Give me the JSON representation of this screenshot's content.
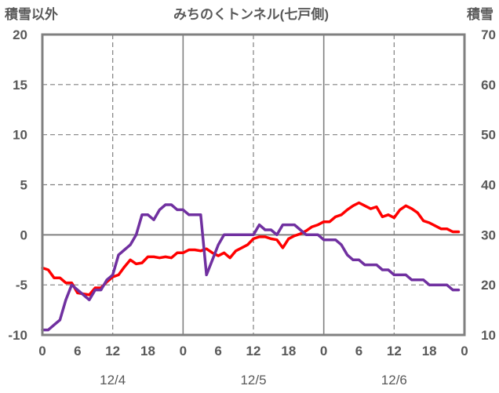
{
  "chart_data": {
    "type": "line",
    "title": "みちのくトンネル(七戸側)",
    "left_axis_label": "積雪以外",
    "right_axis_label": "積雪",
    "left_ylim": [
      -10,
      20
    ],
    "right_ylim": [
      10,
      70
    ],
    "left_yticks": [
      "-10",
      "-5",
      "0",
      "5",
      "10",
      "15",
      "20"
    ],
    "right_yticks": [
      "10",
      "20",
      "30",
      "40",
      "50",
      "60",
      "70"
    ],
    "xlim": [
      0,
      72
    ],
    "x_tick_labels": [
      "0",
      "6",
      "12",
      "18",
      "0",
      "6",
      "12",
      "18",
      "0",
      "6",
      "12",
      "18",
      "0"
    ],
    "x_date_labels": [
      {
        "x": 12,
        "label": "12/4"
      },
      {
        "x": 36,
        "label": "12/5"
      },
      {
        "x": 60,
        "label": "12/6"
      }
    ],
    "grid": "dashed verticals every 12h, solid verticals at 0h, solid zero line",
    "series": [
      {
        "key": "temperature",
        "color": "#ff0000",
        "axis": "left",
        "x": [
          0,
          1,
          2,
          3,
          4,
          5,
          6,
          7,
          8,
          9,
          10,
          11,
          12,
          13,
          14,
          15,
          16,
          17,
          18,
          19,
          20,
          21,
          22,
          23,
          24,
          25,
          26,
          27,
          28,
          29,
          30,
          31,
          32,
          33,
          34,
          35,
          36,
          37,
          38,
          39,
          40,
          41,
          42,
          43,
          44,
          45,
          46,
          47,
          48,
          49,
          50,
          51,
          52,
          53,
          54,
          55,
          56,
          57,
          58,
          59,
          60,
          61,
          62,
          63,
          64,
          65,
          66,
          67,
          68,
          69,
          70,
          71
        ],
        "values": [
          -3.3,
          -3.5,
          -4.3,
          -4.3,
          -4.8,
          -4.8,
          -5.8,
          -5.9,
          -6.0,
          -5.3,
          -5.3,
          -4.7,
          -4.2,
          -4.0,
          -3.2,
          -2.5,
          -2.9,
          -2.8,
          -2.2,
          -2.2,
          -2.3,
          -2.2,
          -2.3,
          -1.8,
          -1.8,
          -1.5,
          -1.5,
          -1.6,
          -1.4,
          -1.8,
          -2.1,
          -1.8,
          -2.3,
          -1.6,
          -1.3,
          -1.0,
          -0.4,
          -0.2,
          -0.2,
          -0.4,
          -0.5,
          -1.3,
          -0.4,
          -0.1,
          0.1,
          0.4,
          0.8,
          1.0,
          1.3,
          1.3,
          1.8,
          2.0,
          2.5,
          2.9,
          3.2,
          2.9,
          2.6,
          2.8,
          1.8,
          2.0,
          1.7,
          2.5,
          2.9,
          2.6,
          2.2,
          1.4,
          1.2,
          0.9,
          0.6,
          0.6,
          0.3,
          0.3
        ]
      },
      {
        "key": "snow_depth",
        "color": "#7030a0",
        "axis": "right",
        "x": [
          0,
          1,
          2,
          3,
          4,
          5,
          6,
          7,
          8,
          9,
          10,
          11,
          12,
          13,
          14,
          15,
          16,
          17,
          18,
          19,
          20,
          21,
          22,
          23,
          24,
          25,
          26,
          27,
          28,
          29,
          30,
          31,
          32,
          33,
          34,
          35,
          36,
          37,
          38,
          39,
          40,
          41,
          42,
          43,
          44,
          45,
          46,
          47,
          48,
          49,
          50,
          51,
          52,
          53,
          54,
          55,
          56,
          57,
          58,
          59,
          60,
          61,
          62,
          63,
          64,
          65,
          66,
          67,
          68,
          69,
          70,
          71
        ],
        "values": [
          11,
          11,
          12,
          13,
          17,
          20,
          19,
          18,
          17,
          19,
          19,
          21,
          22,
          26,
          27,
          28,
          30,
          34,
          34,
          33,
          35,
          36,
          36,
          35,
          35,
          34,
          34,
          34,
          22,
          25,
          28,
          30,
          30,
          30,
          30,
          30,
          30,
          32,
          31,
          31,
          30,
          32,
          32,
          32,
          31,
          30,
          30,
          30,
          29,
          29,
          29,
          28,
          26,
          25,
          25,
          24,
          24,
          24,
          23,
          23,
          22,
          22,
          22,
          21,
          21,
          21,
          20,
          20,
          20,
          20,
          19,
          19
        ]
      }
    ]
  }
}
